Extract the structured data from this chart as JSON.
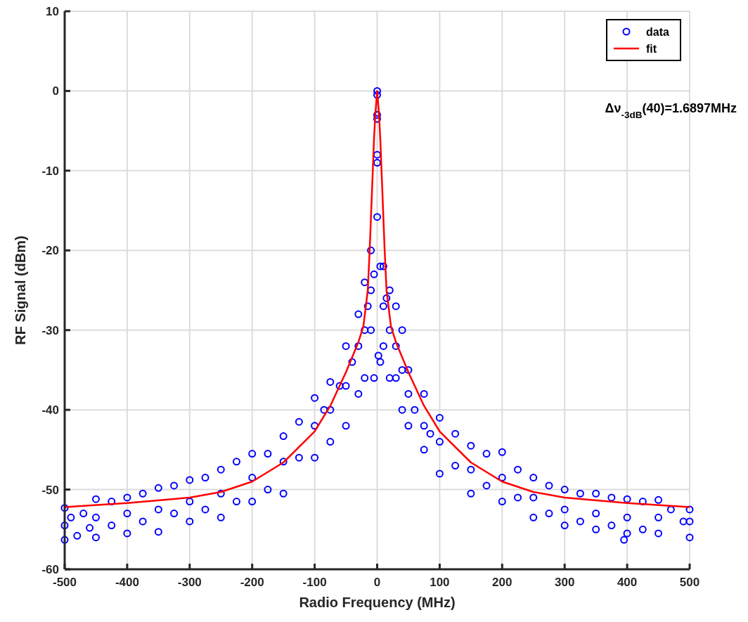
{
  "chart_data": {
    "type": "scatter",
    "xlabel": "Radio Frequency (MHz)",
    "ylabel": "RF Signal (dBm)",
    "xlim": [
      -500,
      500
    ],
    "xticks": [
      -500,
      -400,
      -300,
      -200,
      -100,
      0,
      100,
      200,
      300,
      400,
      500
    ],
    "ylim": [
      -60,
      10
    ],
    "yticks": [
      -60,
      -50,
      -40,
      -30,
      -20,
      -10,
      0,
      10
    ],
    "grid": true,
    "legend": "top right",
    "annotations": [
      {
        "text": "Δν$_{-3dB}$(40)=1.6897MHz"
      }
    ],
    "series": [
      {
        "name": "data",
        "marker": "circle",
        "color": "#0000ff",
        "x": [
          -500,
          -500,
          -500,
          -490,
          -480,
          -470,
          -460,
          -450,
          -450,
          -450,
          -425,
          -425,
          -400,
          -400,
          -400,
          -375,
          -375,
          -350,
          -350,
          -350,
          -325,
          -325,
          -300,
          -300,
          -300,
          -275,
          -275,
          -250,
          -250,
          -250,
          -225,
          -225,
          -200,
          -200,
          -200,
          -175,
          -175,
          -150,
          -150,
          -150,
          -125,
          -125,
          -100,
          -100,
          -100,
          -85,
          -75,
          -75,
          -75,
          -60,
          -50,
          -50,
          -50,
          -40,
          -30,
          -30,
          -30,
          -20,
          -20,
          -20,
          -15,
          -10,
          -10,
          -10,
          -5,
          -5,
          0,
          0,
          0,
          0,
          0,
          0,
          0,
          2,
          5,
          5,
          10,
          10,
          10,
          15,
          20,
          20,
          20,
          30,
          30,
          30,
          40,
          40,
          40,
          50,
          50,
          50,
          60,
          75,
          75,
          75,
          85,
          100,
          100,
          100,
          125,
          125,
          150,
          150,
          150,
          175,
          175,
          200,
          200,
          200,
          225,
          225,
          250,
          250,
          250,
          275,
          275,
          300,
          300,
          300,
          325,
          325,
          350,
          350,
          350,
          375,
          375,
          395,
          400,
          400,
          400,
          425,
          425,
          450,
          450,
          450,
          470,
          490,
          500,
          500,
          500
        ],
        "values": [
          -52.3,
          -54.5,
          -56.3,
          -53.5,
          -55.8,
          -53,
          -54.8,
          -51.2,
          -53.5,
          -56,
          -51.5,
          -54.5,
          -51,
          -53,
          -55.5,
          -50.5,
          -54,
          -49.8,
          -52.5,
          -55.3,
          -49.5,
          -53,
          -48.8,
          -51.5,
          -54,
          -48.5,
          -52.5,
          -47.5,
          -50.5,
          -53.5,
          -46.5,
          -51.5,
          -45.5,
          -48.5,
          -51.5,
          -45.5,
          -50,
          -43.3,
          -46.5,
          -50.5,
          -41.5,
          -46,
          -38.5,
          -42,
          -46,
          -40,
          -36.5,
          -40,
          -44,
          -37,
          -32,
          -37,
          -42,
          -34,
          -28,
          -32,
          -38,
          -24,
          -30,
          -36,
          -27,
          -20,
          -25,
          -30,
          -23,
          -36,
          0,
          -0.5,
          -3,
          -3.5,
          -8,
          -9,
          -15.8,
          -33.2,
          -22,
          -34,
          -22,
          -27,
          -32,
          -26,
          -25,
          -30,
          -36,
          -27,
          -32,
          -36,
          -30,
          -35,
          -40,
          -35,
          -38,
          -42,
          -40,
          -38,
          -42,
          -45,
          -43,
          -41,
          -44,
          -48,
          -43,
          -47,
          -44.5,
          -47.5,
          -50.5,
          -45.5,
          -49.5,
          -45.3,
          -48.5,
          -51.5,
          -47.5,
          -51,
          -48.5,
          -51,
          -53.5,
          -49.5,
          -53,
          -50,
          -52.5,
          -54.5,
          -50.5,
          -54,
          -50.5,
          -53,
          -55,
          -51,
          -54.5,
          -56.3,
          -51.2,
          -53.5,
          -55.5,
          -51.5,
          -55,
          -51.3,
          -53.5,
          -55.5,
          -52.5,
          -54,
          -52.5,
          -54,
          -56
        ]
      },
      {
        "name": "fit",
        "type": "line",
        "marker": "none",
        "color": "#ff0000",
        "x": [
          -500,
          -400,
          -300,
          -250,
          -200,
          -150,
          -100,
          -75,
          -50,
          -30,
          -22,
          -15,
          -12,
          -8,
          -5,
          -3,
          0,
          3,
          5,
          8,
          12,
          15,
          22,
          30,
          50,
          75,
          100,
          150,
          200,
          250,
          300,
          400,
          500
        ],
        "values": [
          -52.2,
          -51.7,
          -51,
          -50.3,
          -49,
          -46.6,
          -42.7,
          -39.5,
          -35.3,
          -31.5,
          -29.5,
          -25,
          -20,
          -12,
          -6,
          -3,
          0,
          -3,
          -6,
          -12,
          -20,
          -25,
          -29.5,
          -31.5,
          -35.3,
          -39.5,
          -42.7,
          -46.6,
          -49,
          -50.3,
          -51,
          -51.7,
          -52.2
        ]
      }
    ]
  }
}
